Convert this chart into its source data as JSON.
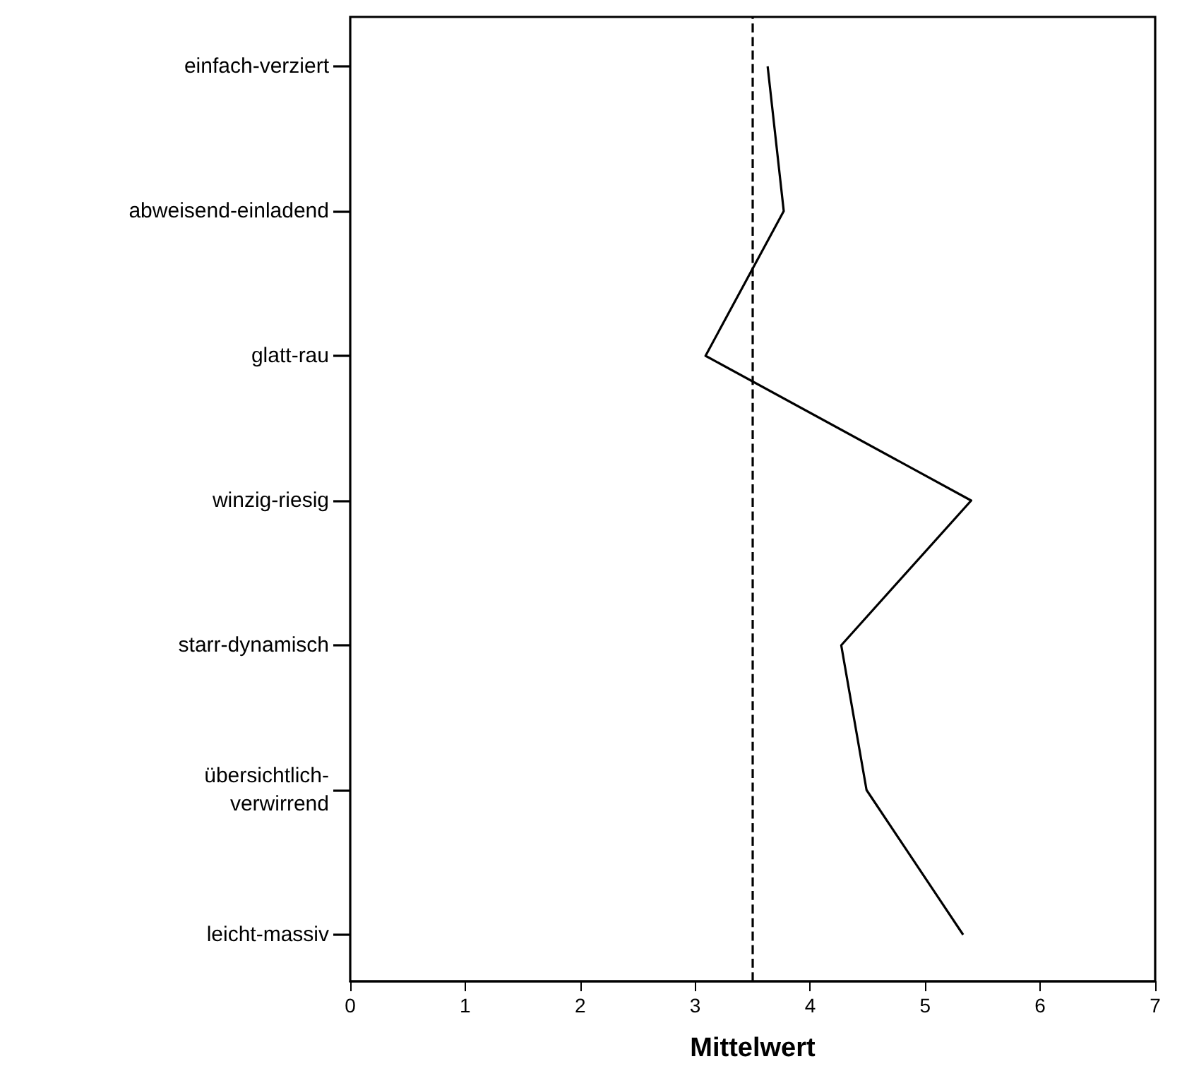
{
  "chart_data": {
    "type": "line",
    "orientation": "horizontal",
    "xlabel": "Mittelwert",
    "categories": [
      "einfach-verziert",
      "abweisend-einladend",
      "glatt-rau",
      "winzig-riesig",
      "starr-dynamisch",
      "übersichtlich-\nverwirrend",
      "leicht-massiv"
    ],
    "series": [
      {
        "color": "#000000",
        "values": [
          3.63,
          3.77,
          3.09,
          5.4,
          4.27,
          4.49,
          5.33
        ]
      }
    ],
    "xlim": [
      0,
      7
    ],
    "xticks": [
      0,
      1,
      2,
      3,
      4,
      5,
      6,
      7
    ],
    "ref_lines": [
      {
        "axis": "x",
        "value": 3.5,
        "line_style": "dashed",
        "color": "#000000"
      }
    ],
    "grid": false,
    "marker": "none",
    "line_style": "solid"
  }
}
